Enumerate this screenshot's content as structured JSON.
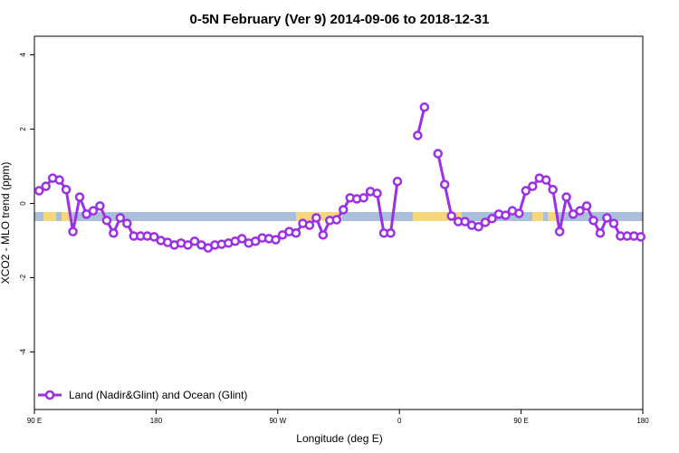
{
  "chart_data": {
    "type": "line",
    "title": "0-5N February (Ver 9)   2014-09-06 to 2018-12-31",
    "xlabel": "Longitude (deg E)",
    "ylabel": "XCO2 - MLO trend (ppm)",
    "x": [
      93.5,
      98.5,
      103.5,
      108.5,
      113.5,
      118.5,
      123.5,
      128.5,
      133.5,
      138.5,
      143.5,
      148.5,
      153.5,
      158.5,
      163.5,
      168.5,
      173.5,
      178.5,
      183.5,
      188.5,
      193.5,
      198.5,
      203.5,
      208.5,
      213.5,
      218.5,
      223.5,
      228.5,
      233.5,
      238.5,
      243.5,
      248.5,
      253.5,
      258.5,
      263.5,
      268.5,
      273.5,
      278.5,
      283.5,
      288.5,
      293.5,
      298.5,
      303.5,
      308.5,
      313.5,
      318.5,
      323.5,
      328.5,
      333.5,
      338.5,
      343.5,
      348.5,
      353.5,
      358.5,
      363.5,
      368.5,
      373.5,
      378.5,
      383.5,
      388.5,
      393.5,
      398.5,
      403.5,
      408.5,
      413.5,
      418.5,
      423.5,
      428.5,
      433.5,
      438.5,
      443.5,
      448.5,
      453.5,
      458.5,
      463.5,
      468.5,
      473.5,
      478.5,
      483.5,
      488.5,
      493.5,
      498.5,
      503.5,
      508.5,
      513.5,
      518.5,
      523.5,
      528.5,
      533.5,
      538.5
    ],
    "series": [
      {
        "name": "Land (Nadir&Glint) and Ocean (Glint)",
        "color": "#9b30e6",
        "values": [
          0.34,
          0.46,
          0.68,
          0.63,
          0.37,
          -0.76,
          0.17,
          -0.29,
          -0.2,
          -0.07,
          -0.46,
          -0.8,
          -0.39,
          -0.54,
          -0.88,
          -0.88,
          -0.88,
          -0.9,
          -1.0,
          -1.05,
          -1.12,
          -1.07,
          -1.12,
          -1.02,
          -1.12,
          -1.2,
          -1.12,
          -1.1,
          -1.07,
          -1.02,
          -0.95,
          -1.07,
          -1.02,
          -0.93,
          -0.95,
          -0.98,
          -0.85,
          -0.76,
          -0.8,
          -0.54,
          -0.59,
          -0.39,
          -0.85,
          -0.46,
          -0.44,
          -0.17,
          0.15,
          0.12,
          0.15,
          0.32,
          0.27,
          -0.8,
          -0.8,
          0.59,
          null,
          null,
          1.83,
          2.59,
          null,
          1.34,
          0.51,
          -0.34,
          -0.49,
          -0.49,
          -0.59,
          -0.63,
          -0.51,
          -0.41,
          -0.29,
          -0.32,
          -0.2,
          -0.27,
          0.34,
          0.46,
          0.68,
          0.63,
          0.37,
          -0.76,
          0.17,
          -0.29,
          -0.2,
          -0.07,
          -0.46,
          -0.8,
          -0.39,
          -0.54,
          -0.88,
          -0.88,
          -0.88,
          -0.9
        ]
      }
    ],
    "xlim": [
      90,
      540
    ],
    "xticks": [
      {
        "value": 90,
        "label": "90 E"
      },
      180,
      {
        "value": 270,
        "label": "90 W"
      },
      {
        "value": 360,
        "label": "0"
      },
      {
        "value": 450,
        "label": "90 E"
      },
      {
        "value": 540,
        "label": "180"
      }
    ],
    "ylim": [
      -5.55,
      4.5
    ],
    "yticks": [
      -4,
      -2,
      0,
      2,
      4
    ],
    "legend": "bottom-left"
  }
}
